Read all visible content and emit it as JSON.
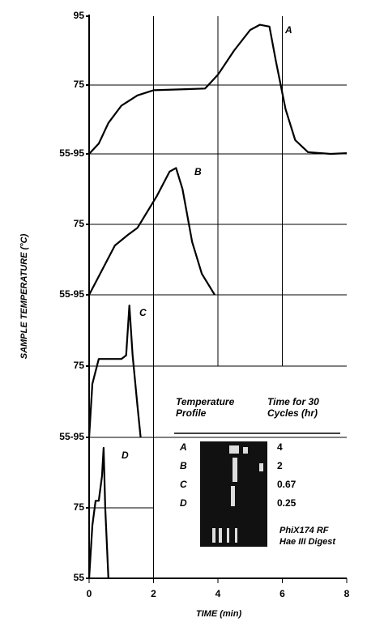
{
  "chart_data": [
    {
      "type": "line",
      "label": "A",
      "ylabel": "SAMPLE TEMPERATURE (°C)",
      "xlim": [
        0,
        8
      ],
      "ylim": [
        55,
        95
      ],
      "yticks": [
        {
          "value": 55,
          "label": "55-95"
        },
        75,
        95
      ],
      "x": [
        0,
        0.3,
        0.6,
        1,
        1.5,
        2,
        3,
        3.6,
        4,
        4.5,
        5,
        5.3,
        5.6,
        5.8,
        6.1,
        6.4,
        6.8,
        7.5,
        8
      ],
      "values": [
        55,
        58,
        64,
        69,
        72,
        73.5,
        73.8,
        74,
        78,
        85,
        91,
        92.5,
        92,
        82,
        68,
        59,
        55.5,
        55,
        55.2
      ]
    },
    {
      "type": "line",
      "label": "B",
      "xlim": [
        0,
        8
      ],
      "ylim": [
        55,
        95
      ],
      "yticks": [
        {
          "value": 55,
          "label": "55-95"
        },
        75
      ],
      "x": [
        0,
        0.4,
        0.8,
        1.2,
        1.5,
        1.7,
        2.1,
        2.5,
        2.7,
        2.9,
        3.2,
        3.5,
        3.9
      ],
      "values": [
        55,
        62,
        69,
        72,
        74,
        77,
        83,
        90,
        91,
        85,
        70,
        61,
        55
      ]
    },
    {
      "type": "line",
      "label": "C",
      "xlim": [
        0,
        8
      ],
      "ylim": [
        55,
        95
      ],
      "yticks": [
        {
          "value": 55,
          "label": "55-95"
        },
        75
      ],
      "x": [
        0,
        0.1,
        0.3,
        1.0,
        1.15,
        1.25,
        1.35,
        1.5,
        1.6
      ],
      "values": [
        55,
        70,
        77,
        77,
        78,
        92,
        78,
        64,
        55
      ]
    },
    {
      "type": "line",
      "label": "D",
      "xlabel": "TIME (min)",
      "xlim": [
        0,
        8
      ],
      "ylim": [
        55,
        95
      ],
      "xticks": [
        0,
        2,
        4,
        6,
        8
      ],
      "yticks": [
        55,
        75
      ],
      "x": [
        0,
        0.1,
        0.2,
        0.3,
        0.4,
        0.45,
        0.5,
        0.6
      ],
      "values": [
        55,
        70,
        77,
        77,
        84,
        92,
        75,
        55
      ]
    }
  ],
  "inset": {
    "headers": [
      "Temperature Profile",
      "Time for 30 Cycles (hr)"
    ],
    "rows": [
      [
        "A",
        "4"
      ],
      [
        "B",
        "2"
      ],
      [
        "C",
        "0.67"
      ],
      [
        "D",
        "0.25"
      ]
    ],
    "caption": [
      "PhiX174 RF",
      "Hae III Digest"
    ]
  }
}
